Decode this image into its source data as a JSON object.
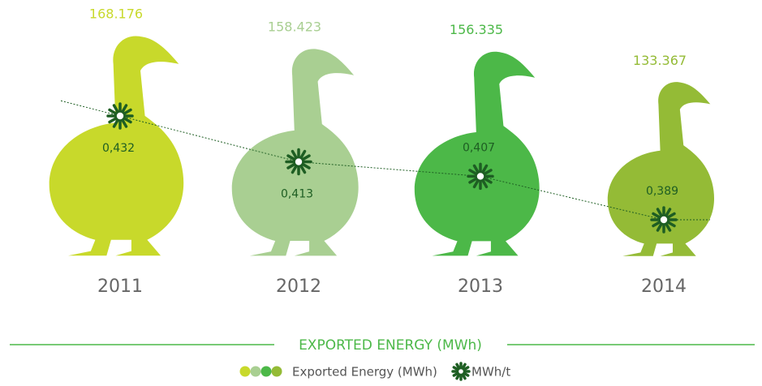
{
  "chart_data": {
    "type": "pictogram",
    "title": "EXPORTED ENERGY (MWh)",
    "categories": [
      "2011",
      "2012",
      "2013",
      "2014"
    ],
    "series": [
      {
        "name": "Exported Energy (MWh)",
        "colors": [
          "#c8d92b",
          "#a9cf92",
          "#4cb848",
          "#94bb36"
        ],
        "values": [
          168176,
          158423,
          156335,
          133367
        ],
        "value_labels": [
          "168.176",
          "158.423",
          "156.335",
          "133.367"
        ]
      },
      {
        "name": "MWh/t",
        "color": "#1e5e23",
        "values": [
          0.432,
          0.413,
          0.407,
          0.389
        ],
        "value_labels": [
          "0,432",
          "0,413",
          "0,407",
          "0,389"
        ]
      }
    ]
  }
}
